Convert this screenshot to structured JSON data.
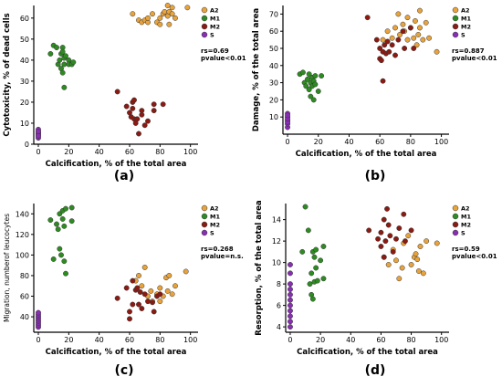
{
  "colors": {
    "A2": "#e8a33c",
    "M1": "#2e8b22",
    "M2": "#8b1a12",
    "S": "#8a2db5"
  },
  "chart_data": [
    {
      "type": "scatter",
      "panel_label": "(a)",
      "xlabel": "Calcification, % of the total area",
      "ylabel": "Cytotoxicity, % of dead cells",
      "xlim": [
        -3,
        105
      ],
      "ylim": [
        0,
        66
      ],
      "xticks": [
        0,
        20,
        40,
        60,
        80,
        100
      ],
      "yticks": [
        0,
        10,
        20,
        30,
        40,
        50,
        60
      ],
      "stats": [
        "rs=0.69",
        "pvalue<0.01"
      ],
      "legend": [
        "A2",
        "M1",
        "M2",
        "S"
      ],
      "legend_position": "top-right",
      "series": [
        {
          "name": "A2",
          "points": [
            [
              62,
              62
            ],
            [
              66,
              59
            ],
            [
              68,
              58
            ],
            [
              70,
              59
            ],
            [
              72,
              58
            ],
            [
              72,
              60
            ],
            [
              75,
              62
            ],
            [
              78,
              58
            ],
            [
              80,
              57
            ],
            [
              80,
              60
            ],
            [
              82,
              62
            ],
            [
              83,
              63
            ],
            [
              85,
              66
            ],
            [
              85,
              61
            ],
            [
              86,
              63
            ],
            [
              86,
              57
            ],
            [
              88,
              62
            ],
            [
              88,
              65
            ],
            [
              90,
              60
            ],
            [
              98,
              65
            ]
          ]
        },
        {
          "name": "M1",
          "points": [
            [
              8,
              43
            ],
            [
              10,
              47
            ],
            [
              12,
              46
            ],
            [
              13,
              38
            ],
            [
              14,
              40
            ],
            [
              15,
              43
            ],
            [
              15,
              36
            ],
            [
              16,
              46
            ],
            [
              16,
              44
            ],
            [
              16,
              34
            ],
            [
              17,
              38
            ],
            [
              17,
              41
            ],
            [
              17,
              27
            ],
            [
              18,
              42
            ],
            [
              20,
              40
            ],
            [
              20,
              38
            ],
            [
              22,
              38
            ],
            [
              23,
              39
            ]
          ]
        },
        {
          "name": "M2",
          "points": [
            [
              52,
              25
            ],
            [
              58,
              18
            ],
            [
              60,
              15
            ],
            [
              61,
              13
            ],
            [
              62,
              20
            ],
            [
              62,
              17
            ],
            [
              63,
              21
            ],
            [
              63,
              12
            ],
            [
              64,
              10
            ],
            [
              65,
              12
            ],
            [
              66,
              5
            ],
            [
              68,
              14
            ],
            [
              68,
              16
            ],
            [
              70,
              9
            ],
            [
              72,
              11
            ],
            [
              76,
              16
            ],
            [
              76,
              19
            ],
            [
              82,
              19
            ]
          ]
        },
        {
          "name": "S",
          "points": [
            [
              0,
              3
            ],
            [
              0,
              4
            ],
            [
              0,
              5
            ],
            [
              0,
              6
            ],
            [
              0,
              7
            ],
            [
              0,
              5
            ],
            [
              0,
              4
            ],
            [
              0,
              6
            ]
          ]
        }
      ]
    },
    {
      "type": "scatter",
      "panel_label": "(b)",
      "xlabel": "Calcification, % of the total area",
      "ylabel": "Damage, % of the total area",
      "xlim": [
        -3,
        105
      ],
      "ylim": [
        0,
        75
      ],
      "xticks": [
        0,
        20,
        40,
        60,
        80,
        100
      ],
      "yticks": [
        10,
        20,
        30,
        40,
        50,
        60,
        70
      ],
      "stats": [
        "rs=0.887",
        "pvalue<0.01"
      ],
      "legend": [
        "A2",
        "M1",
        "M2",
        "S"
      ],
      "legend_position": "top-right",
      "series": [
        {
          "name": "A2",
          "points": [
            [
              62,
              55
            ],
            [
              65,
              60
            ],
            [
              68,
              56
            ],
            [
              70,
              62
            ],
            [
              72,
              70
            ],
            [
              73,
              58
            ],
            [
              75,
              64
            ],
            [
              76,
              60
            ],
            [
              78,
              68
            ],
            [
              78,
              55
            ],
            [
              80,
              62
            ],
            [
              82,
              56
            ],
            [
              83,
              66
            ],
            [
              84,
              52
            ],
            [
              85,
              58
            ],
            [
              86,
              72
            ],
            [
              86,
              62
            ],
            [
              88,
              55
            ],
            [
              90,
              65
            ],
            [
              92,
              56
            ],
            [
              97,
              48
            ]
          ]
        },
        {
          "name": "M1",
          "points": [
            [
              8,
              35
            ],
            [
              10,
              36
            ],
            [
              11,
              30
            ],
            [
              12,
              28
            ],
            [
              13,
              32
            ],
            [
              14,
              35
            ],
            [
              14,
              26
            ],
            [
              15,
              30
            ],
            [
              15,
              22
            ],
            [
              16,
              33
            ],
            [
              16,
              28
            ],
            [
              17,
              31
            ],
            [
              17,
              20
            ],
            [
              18,
              34
            ],
            [
              18,
              29
            ],
            [
              20,
              25
            ],
            [
              22,
              34
            ]
          ]
        },
        {
          "name": "M2",
          "points": [
            [
              52,
              68
            ],
            [
              58,
              55
            ],
            [
              60,
              50
            ],
            [
              60,
              44
            ],
            [
              61,
              43
            ],
            [
              62,
              48
            ],
            [
              62,
              31
            ],
            [
              63,
              52
            ],
            [
              64,
              47
            ],
            [
              65,
              54
            ],
            [
              66,
              48
            ],
            [
              68,
              52
            ],
            [
              70,
              46
            ],
            [
              72,
              55
            ],
            [
              75,
              60
            ],
            [
              76,
              50
            ],
            [
              80,
              62
            ],
            [
              82,
              50
            ]
          ]
        },
        {
          "name": "S",
          "points": [
            [
              0,
              4
            ],
            [
              0,
              6
            ],
            [
              0,
              8
            ],
            [
              0,
              10
            ],
            [
              0,
              12
            ],
            [
              0,
              7
            ],
            [
              0,
              9
            ],
            [
              0,
              11
            ]
          ]
        }
      ]
    },
    {
      "type": "scatter",
      "panel_label": "(c)",
      "xlabel": "Calcification, % of the total area",
      "ylabel": "Migration, numberof leucocytes",
      "xlim": [
        -3,
        105
      ],
      "ylim": [
        25,
        150
      ],
      "xticks": [
        0,
        20,
        40,
        60,
        80,
        100
      ],
      "yticks": [
        40,
        60,
        80,
        100,
        120,
        140
      ],
      "stats": [
        "rs=0.268",
        "pvalue=n.s."
      ],
      "legend": [
        "A2",
        "M1",
        "M2",
        "S"
      ],
      "legend_position": "top-right",
      "series": [
        {
          "name": "A2",
          "points": [
            [
              64,
              75
            ],
            [
              66,
              80
            ],
            [
              68,
              70
            ],
            [
              70,
              88
            ],
            [
              72,
              60
            ],
            [
              74,
              65
            ],
            [
              75,
              55
            ],
            [
              78,
              62
            ],
            [
              80,
              68
            ],
            [
              80,
              55
            ],
            [
              82,
              60
            ],
            [
              84,
              78
            ],
            [
              85,
              65
            ],
            [
              86,
              80
            ],
            [
              88,
              62
            ],
            [
              90,
              70
            ],
            [
              97,
              84
            ]
          ]
        },
        {
          "name": "M1",
          "points": [
            [
              8,
              134
            ],
            [
              10,
              96
            ],
            [
              12,
              130
            ],
            [
              13,
              125
            ],
            [
              14,
              140
            ],
            [
              14,
              106
            ],
            [
              15,
              100
            ],
            [
              16,
              143
            ],
            [
              16,
              135
            ],
            [
              17,
              128
            ],
            [
              17,
              94
            ],
            [
              18,
              145
            ],
            [
              18,
              82
            ],
            [
              22,
              146
            ],
            [
              22,
              133
            ]
          ]
        },
        {
          "name": "M2",
          "points": [
            [
              52,
              58
            ],
            [
              58,
              68
            ],
            [
              60,
              45
            ],
            [
              60,
              38
            ],
            [
              62,
              75
            ],
            [
              62,
              52
            ],
            [
              64,
              66
            ],
            [
              65,
              68
            ],
            [
              66,
              52
            ],
            [
              67,
              64
            ],
            [
              68,
              48
            ],
            [
              70,
              62
            ],
            [
              72,
              55
            ],
            [
              75,
              54
            ],
            [
              76,
              45
            ],
            [
              78,
              60
            ],
            [
              80,
              62
            ]
          ]
        },
        {
          "name": "S",
          "points": [
            [
              0,
              30
            ],
            [
              0,
              32
            ],
            [
              0,
              34
            ],
            [
              0,
              36
            ],
            [
              0,
              38
            ],
            [
              0,
              40
            ],
            [
              0,
              42
            ],
            [
              0,
              44
            ]
          ]
        }
      ]
    },
    {
      "type": "scatter",
      "panel_label": "(d)",
      "xlabel": "Calcification, % of the total area",
      "ylabel": "Resorption, % of the total area",
      "xlim": [
        -3,
        105
      ],
      "ylim": [
        3.5,
        15.5
      ],
      "xticks": [
        0,
        20,
        40,
        60,
        80,
        100
      ],
      "yticks": [
        4,
        6,
        8,
        10,
        12,
        14
      ],
      "stats": [
        "rs=0.59",
        "pvalue<0.01"
      ],
      "legend": [
        "A2",
        "M1",
        "M2",
        "S"
      ],
      "legend_position": "top-right",
      "series": [
        {
          "name": "A2",
          "points": [
            [
              62,
              10.5
            ],
            [
              65,
              9.8
            ],
            [
              68,
              11.2
            ],
            [
              70,
              10.2
            ],
            [
              72,
              8.5
            ],
            [
              74,
              9.5
            ],
            [
              75,
              11.8
            ],
            [
              78,
              12.5
            ],
            [
              80,
              9.8
            ],
            [
              82,
              10.5
            ],
            [
              83,
              10.8
            ],
            [
              84,
              10.3
            ],
            [
              85,
              9.2
            ],
            [
              86,
              11.5
            ],
            [
              88,
              9.0
            ],
            [
              90,
              12.0
            ],
            [
              97,
              11.8
            ]
          ]
        },
        {
          "name": "M1",
          "points": [
            [
              8,
              11.0
            ],
            [
              10,
              15.2
            ],
            [
              12,
              13.0
            ],
            [
              13,
              8.0
            ],
            [
              14,
              9.0
            ],
            [
              14,
              7.0
            ],
            [
              15,
              11.0
            ],
            [
              15,
              6.6
            ],
            [
              16,
              10.5
            ],
            [
              16,
              8.2
            ],
            [
              17,
              11.2
            ],
            [
              17,
              9.5
            ],
            [
              18,
              8.3
            ],
            [
              20,
              10.2
            ],
            [
              22,
              8.5
            ],
            [
              22,
              11.5
            ]
          ]
        },
        {
          "name": "M2",
          "points": [
            [
              52,
              13.0
            ],
            [
              58,
              12.2
            ],
            [
              60,
              11.5
            ],
            [
              60,
              12.8
            ],
            [
              62,
              14.0
            ],
            [
              62,
              10.5
            ],
            [
              63,
              12.0
            ],
            [
              64,
              15.0
            ],
            [
              65,
              13.5
            ],
            [
              66,
              12.5
            ],
            [
              68,
              11.0
            ],
            [
              70,
              12.2
            ],
            [
              72,
              13.2
            ],
            [
              75,
              14.5
            ],
            [
              76,
              12.0
            ],
            [
              80,
              13.0
            ]
          ]
        },
        {
          "name": "S",
          "points": [
            [
              0,
              4.0
            ],
            [
              0,
              4.5
            ],
            [
              0,
              5.0
            ],
            [
              0,
              5.5
            ],
            [
              0,
              6.0
            ],
            [
              0,
              6.5
            ],
            [
              0,
              7.0
            ],
            [
              0,
              7.5
            ],
            [
              0,
              8.0
            ],
            [
              0,
              9.0
            ],
            [
              0,
              9.8
            ]
          ]
        }
      ]
    }
  ]
}
